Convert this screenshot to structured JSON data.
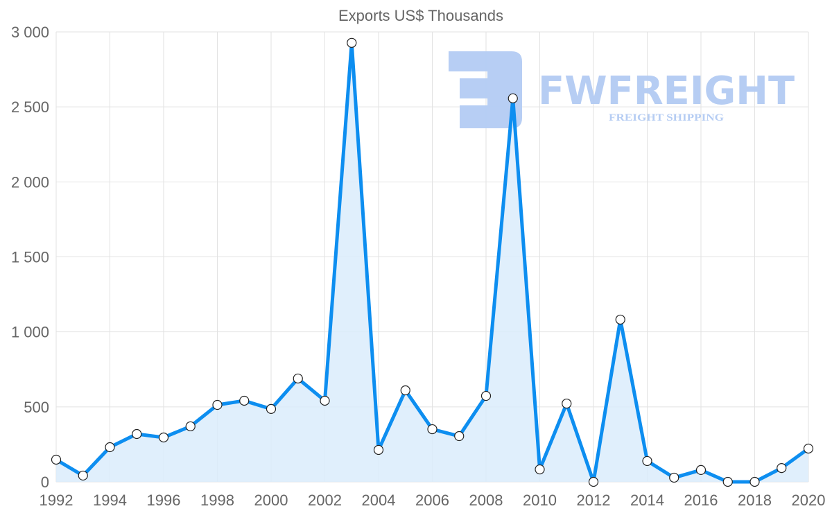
{
  "watermark": {
    "brand": "FWFREIGHT",
    "tagline": "FREIGHT SHIPPING"
  },
  "colors": {
    "line": "#0d8ef0",
    "fill": "#dbecfc",
    "grid": "#e2e2e2",
    "text": "#666666",
    "watermark": "#b3cbf3"
  },
  "chart_data": {
    "type": "area",
    "title": "Exports US$ Thousands",
    "xlabel": "",
    "ylabel": "",
    "x": [
      1992,
      1993,
      1994,
      1995,
      1996,
      1997,
      1998,
      1999,
      2000,
      2001,
      2002,
      2003,
      2004,
      2005,
      2006,
      2007,
      2008,
      2009,
      2010,
      2011,
      2012,
      2013,
      2014,
      2015,
      2016,
      2017,
      2018,
      2019,
      2020
    ],
    "series": [
      {
        "name": "Exports US$ Thousands",
        "values": [
          148,
          42,
          231,
          319,
          296,
          370,
          513,
          541,
          486,
          689,
          541,
          2927,
          213,
          610,
          351,
          305,
          573,
          2557,
          83,
          522,
          0,
          1082,
          139,
          28,
          79,
          0,
          0,
          92,
          222
        ]
      }
    ],
    "xlim": [
      1992,
      2020
    ],
    "ylim": [
      0,
      3000
    ],
    "x_ticks": [
      "1992",
      "1994",
      "1996",
      "1998",
      "2000",
      "2002",
      "2004",
      "2006",
      "2008",
      "2010",
      "2012",
      "2014",
      "2016",
      "2018",
      "2020"
    ],
    "y_ticks": [
      "0",
      "500",
      "1 000",
      "1 500",
      "2 000",
      "2 500",
      "3 000"
    ],
    "y_tick_values": [
      0,
      500,
      1000,
      1500,
      2000,
      2500,
      3000
    ],
    "grid": true,
    "legend": "none"
  }
}
